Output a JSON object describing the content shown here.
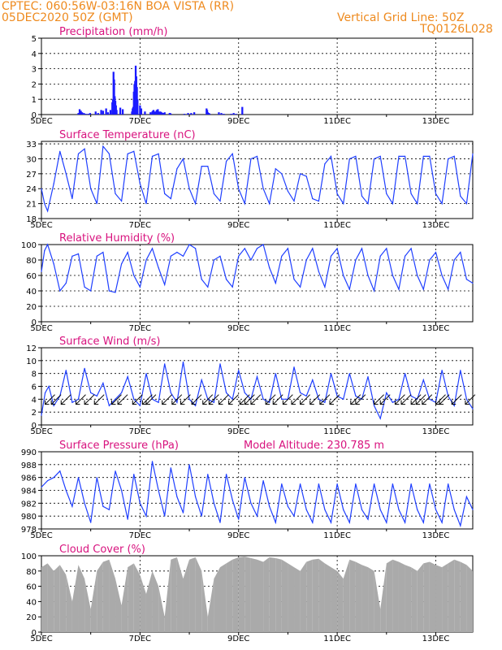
{
  "header": {
    "line1": "CPTEC:   060:56W-03:16N  BOA VISTA (RR)",
    "line2": "05DEC2020 50Z (GMT)",
    "right1": "Vertical Grid Line: 50Z",
    "right2": "TQ0126L028"
  },
  "colors": {
    "header": "#ee8a1e",
    "title": "#d8127e",
    "line": "#1f3fff",
    "bar": "#1a1aff",
    "cloud": "#aaaaaa"
  },
  "chart_data": [
    {
      "id": "precip",
      "type": "bar",
      "title": "Precipitation (mm/h)",
      "x_ticks": [
        "5DEC",
        "7DEC",
        "9DEC",
        "11DEC",
        "13DEC",
        "15DEC",
        "17DEC",
        "19DEC"
      ],
      "y_ticks": [
        "0",
        "1",
        "2",
        "3",
        "4",
        "5"
      ],
      "ylim": [
        0,
        5
      ],
      "grid": true,
      "x": [
        3.0,
        3.1,
        3.2,
        3.3,
        3.45,
        3.6,
        3.8,
        3.95,
        4.4,
        4.6,
        4.85,
        5.0,
        5.25,
        5.4,
        5.6,
        5.75,
        5.8,
        5.85,
        5.9,
        5.95,
        6.0,
        6.05,
        6.1,
        6.4,
        6.6,
        7.35,
        7.4,
        7.45,
        7.5,
        7.55,
        7.6,
        7.65,
        7.7,
        7.75,
        7.8,
        8.0,
        8.1,
        8.4,
        8.85,
        9.0,
        9.05,
        9.1,
        9.15,
        9.2,
        9.25,
        9.3,
        9.35,
        9.4,
        9.45,
        9.5,
        9.55,
        9.6,
        9.65,
        9.7,
        9.75,
        9.8,
        9.85,
        9.9,
        9.95,
        10.0,
        10.4,
        10.45,
        10.5,
        11.6,
        11.9,
        12.15,
        12.4,
        13.4,
        13.45,
        13.5,
        13.55,
        13.6,
        13.65,
        14.4,
        14.6,
        14.8,
        15.4,
        15.6,
        15.8,
        16.3
      ],
      "values": [
        0.1,
        0.35,
        0.25,
        0.15,
        0.1,
        0.05,
        0.05,
        0.1,
        0.2,
        0.1,
        0.3,
        0.25,
        0.4,
        0.15,
        0.3,
        0.8,
        1.0,
        2.8,
        2.3,
        1.2,
        0.9,
        0.6,
        0.3,
        0.45,
        0.35,
        0.2,
        0.4,
        0.5,
        1.5,
        2.0,
        2.2,
        3.2,
        2.5,
        1.8,
        1.0,
        0.6,
        0.4,
        0.2,
        0.15,
        0.2,
        0.25,
        0.3,
        0.2,
        0.15,
        0.1,
        0.2,
        0.3,
        0.25,
        0.35,
        0.2,
        0.1,
        0.15,
        0.2,
        0.1,
        0.15,
        0.1,
        0.05,
        0.1,
        0.1,
        0.15,
        0.1,
        0.1,
        0.05,
        0.05,
        0.1,
        0.1,
        0.15,
        0.4,
        0.3,
        0.15,
        0.1,
        0.1,
        0.05,
        0.15,
        0.1,
        0.05,
        0.05,
        0.1,
        0.05,
        0.5
      ]
    },
    {
      "id": "temp",
      "type": "line",
      "title": "Surface Temperature (nC)",
      "x_ticks": [
        "5DEC",
        "7DEC",
        "9DEC",
        "11DEC",
        "13DEC",
        "15DEC",
        "17DEC",
        "19DEC"
      ],
      "y_ticks": [
        "18",
        "21",
        "24",
        "27",
        "30",
        "33"
      ],
      "ylim": [
        18,
        33.5
      ],
      "grid": true,
      "x": [
        0,
        0.25,
        0.5,
        1.0,
        1.5,
        2.0,
        2.5,
        3.0,
        3.5,
        4.0,
        4.5,
        5.0,
        5.5,
        6.0,
        6.5,
        7.0,
        7.5,
        8.0,
        8.5,
        9.0,
        9.5,
        10.0,
        10.5,
        11.0,
        11.5,
        12.0,
        12.5,
        13.0,
        13.5,
        14.0,
        14.5,
        15.0,
        15.5,
        16.0,
        16.5,
        17.0,
        17.5,
        18.0,
        18.5,
        19.0,
        19.5,
        20.0,
        20.5,
        21.0,
        21.5,
        22.0,
        22.5,
        23.0,
        23.5,
        24.0,
        24.5,
        25.0,
        25.5,
        26.0,
        26.5,
        27.0,
        27.5,
        28.0,
        28.5,
        29.0,
        29.5,
        30.0,
        30.5,
        31.0,
        31.5,
        32.0,
        32.5,
        33.0,
        33.5,
        34.0,
        34.5,
        35.0
      ],
      "values": [
        24,
        21,
        19.5,
        25,
        31.5,
        27,
        22,
        31,
        32,
        24,
        21,
        32.5,
        31,
        23,
        21.5,
        31,
        31.5,
        25,
        21,
        30.5,
        31,
        23,
        22,
        28,
        30,
        24,
        21,
        28.5,
        28.5,
        23,
        21.5,
        29.5,
        31,
        24,
        21,
        30,
        30.5,
        24,
        21,
        28,
        27,
        23.5,
        21.5,
        27,
        26.5,
        22,
        21.5,
        29,
        30.5,
        23,
        21,
        30,
        30.5,
        22.5,
        21,
        30,
        30.5,
        23,
        21,
        30.5,
        30.5,
        23,
        21,
        30.5,
        30.5,
        23,
        21,
        30,
        30.5,
        22.5,
        21,
        31
      ]
    },
    {
      "id": "rh",
      "type": "line",
      "title": "Relative Humidity (%)",
      "x_ticks": [
        "5DEC",
        "7DEC",
        "9DEC",
        "11DEC",
        "13DEC",
        "15DEC",
        "17DEC",
        "19DEC"
      ],
      "y_ticks": [
        "0",
        "20",
        "40",
        "60",
        "80",
        "100"
      ],
      "ylim": [
        0,
        100
      ],
      "grid": true,
      "x": [
        0,
        0.25,
        0.5,
        1.0,
        1.5,
        2.0,
        2.5,
        3.0,
        3.5,
        4.0,
        4.5,
        5.0,
        5.5,
        6.0,
        6.5,
        7.0,
        7.5,
        8.0,
        8.5,
        9.0,
        9.5,
        10.0,
        10.5,
        11.0,
        11.5,
        12.0,
        12.5,
        13.0,
        13.5,
        14.0,
        14.5,
        15.0,
        15.5,
        16.0,
        16.5,
        17.0,
        17.5,
        18.0,
        18.5,
        19.0,
        19.5,
        20.0,
        20.5,
        21.0,
        21.5,
        22.0,
        22.5,
        23.0,
        23.5,
        24.0,
        24.5,
        25.0,
        25.5,
        26.0,
        26.5,
        27.0,
        27.5,
        28.0,
        28.5,
        29.0,
        29.5,
        30.0,
        30.5,
        31.0,
        31.5,
        32.0,
        32.5,
        33.0,
        33.5,
        34.0,
        34.5,
        35.0
      ],
      "values": [
        65,
        92,
        100,
        75,
        40,
        50,
        85,
        88,
        45,
        40,
        85,
        90,
        40,
        38,
        75,
        90,
        60,
        45,
        80,
        95,
        70,
        48,
        85,
        90,
        85,
        100,
        95,
        55,
        45,
        80,
        85,
        55,
        45,
        85,
        95,
        80,
        95,
        100,
        70,
        50,
        85,
        95,
        55,
        45,
        80,
        95,
        65,
        45,
        85,
        95,
        60,
        42,
        80,
        95,
        60,
        40,
        85,
        95,
        60,
        42,
        85,
        95,
        60,
        42,
        80,
        90,
        60,
        42,
        80,
        90,
        55,
        50
      ]
    },
    {
      "id": "wind",
      "type": "line",
      "title": "Surface Wind (m/s)",
      "x_ticks": [
        "5DEC",
        "7DEC",
        "9DEC",
        "11DEC",
        "13DEC",
        "15DEC",
        "17DEC",
        "19DEC"
      ],
      "y_ticks": [
        "0",
        "2",
        "4",
        "6",
        "8",
        "10",
        "12"
      ],
      "ylim": [
        0,
        12
      ],
      "grid": true,
      "x": [
        0,
        0.3,
        0.6,
        1.0,
        1.5,
        2.0,
        2.5,
        3.0,
        3.5,
        4.0,
        4.5,
        5.0,
        5.5,
        6.0,
        6.5,
        7.0,
        7.5,
        8.0,
        8.5,
        9.0,
        9.5,
        10.0,
        10.5,
        11.0,
        11.5,
        12.0,
        12.5,
        13.0,
        13.5,
        14.0,
        14.5,
        15.0,
        15.5,
        16.0,
        16.5,
        17.0,
        17.5,
        18.0,
        18.5,
        19.0,
        19.5,
        20.0,
        20.5,
        21.0,
        21.5,
        22.0,
        22.5,
        23.0,
        23.5,
        24.0,
        24.5,
        25.0,
        25.5,
        26.0,
        26.5,
        27.0,
        27.5,
        28.0,
        28.5,
        29.0,
        29.5,
        30.0,
        30.5,
        31.0,
        31.5,
        32.0,
        32.5,
        33.0,
        33.5,
        34.0,
        34.5,
        35.0
      ],
      "values": [
        1.5,
        5,
        6,
        3,
        4.5,
        8.5,
        3.5,
        4,
        8.8,
        5,
        4.5,
        6.5,
        3,
        4,
        5,
        7.5,
        4,
        3,
        8,
        4,
        3.5,
        9.5,
        5,
        3.5,
        9.8,
        4,
        3,
        7,
        4,
        3.5,
        9.5,
        5,
        4,
        8.5,
        5,
        4,
        7.5,
        4,
        3.5,
        8,
        4,
        4,
        9,
        5,
        4.5,
        7,
        4,
        3.5,
        8,
        4.5,
        4,
        8,
        4.5,
        4,
        7.5,
        3,
        1,
        5,
        3.5,
        4,
        8,
        4.5,
        4,
        7,
        4,
        3.5,
        8.5,
        4.5,
        3,
        8.5,
        4,
        2.5
      ],
      "arrows": [
        0.3,
        0.8,
        1.6,
        2.8,
        3.5,
        4.3,
        5.7,
        6.2,
        7.4,
        8.2,
        8.5,
        9.8,
        10.6,
        11.3,
        12.2,
        13.1,
        13.6,
        14.4,
        15.2,
        16.1,
        16.5,
        17.0,
        18.2,
        18.8,
        19.6,
        20.3,
        21.0,
        21.8,
        22.6,
        23.4,
        25.1,
        25.5,
        27.0,
        27.5,
        28.7,
        29.2,
        30.0,
        30.4,
        30.9,
        32.0,
        32.3,
        33.3,
        34.4
      ]
    },
    {
      "id": "pres",
      "type": "line",
      "title": "Surface Pressure (hPa)",
      "annotation": "Model Altitude: 230.785 m",
      "x_ticks": [
        "5DEC",
        "7DEC",
        "9DEC",
        "11DEC",
        "13DEC",
        "15DEC",
        "17DEC",
        "19DEC"
      ],
      "y_ticks": [
        "978",
        "980",
        "982",
        "984",
        "986",
        "988",
        "990"
      ],
      "ylim": [
        978,
        990
      ],
      "grid": true,
      "x": [
        0,
        0.5,
        1.0,
        1.5,
        2.0,
        2.5,
        3.0,
        3.5,
        4.0,
        4.5,
        5.0,
        5.5,
        6.0,
        6.5,
        7.0,
        7.5,
        8.0,
        8.5,
        9.0,
        9.5,
        10.0,
        10.5,
        11.0,
        11.5,
        12.0,
        12.5,
        13.0,
        13.5,
        14.0,
        14.5,
        15.0,
        15.5,
        16.0,
        16.5,
        17.0,
        17.5,
        18.0,
        18.5,
        19.0,
        19.5,
        20.0,
        20.5,
        21.0,
        21.5,
        22.0,
        22.5,
        23.0,
        23.5,
        24.0,
        24.5,
        25.0,
        25.5,
        26.0,
        26.5,
        27.0,
        27.5,
        28.0,
        28.5,
        29.0,
        29.5,
        30.0,
        30.5,
        31.0,
        31.5,
        32.0,
        32.5,
        33.0,
        33.5,
        34.0,
        34.5,
        35.0
      ],
      "values": [
        984.5,
        985.5,
        986,
        987,
        984,
        981.5,
        986,
        982,
        979,
        986,
        981.5,
        981,
        987,
        984,
        979.5,
        986.5,
        982,
        980,
        988.5,
        984,
        980,
        987.5,
        983,
        980.5,
        988,
        983,
        980,
        986.5,
        982,
        979,
        986.5,
        982.5,
        979.5,
        986,
        982,
        980,
        985.5,
        981.5,
        979,
        985,
        981.5,
        980,
        985,
        981,
        979,
        985,
        981,
        979,
        985,
        981,
        979,
        985,
        981,
        979.5,
        985,
        981,
        979,
        985,
        981,
        979,
        985,
        981,
        979,
        985,
        981,
        979,
        985,
        981,
        978.5,
        983,
        981
      ]
    },
    {
      "id": "cloud",
      "type": "area",
      "title": "Cloud Cover (%)",
      "x_ticks": [
        "5DEC",
        "7DEC",
        "9DEC",
        "11DEC",
        "13DEC",
        "15DEC",
        "17DEC",
        "19DEC"
      ],
      "y_ticks": [
        "0",
        "20",
        "40",
        "60",
        "80",
        "100"
      ],
      "ylim": [
        0,
        100
      ],
      "grid": true,
      "x": [
        0,
        0.5,
        1.0,
        1.5,
        2.0,
        2.5,
        3.0,
        3.5,
        4.0,
        4.5,
        5.0,
        5.5,
        6.0,
        6.5,
        7.0,
        7.5,
        8.0,
        8.5,
        9.0,
        9.5,
        10.0,
        10.5,
        11.0,
        11.5,
        12.0,
        12.5,
        13.0,
        13.5,
        14.0,
        14.5,
        15.0,
        15.5,
        16.0,
        16.5,
        17.0,
        17.5,
        18.0,
        18.5,
        19.0,
        19.5,
        20.0,
        20.5,
        21.0,
        21.5,
        22.0,
        22.5,
        23.0,
        23.5,
        24.0,
        24.5,
        25.0,
        25.5,
        26.0,
        26.5,
        27.0,
        27.5,
        28.0,
        28.5,
        29.0,
        29.5,
        30.0,
        30.5,
        31.0,
        31.5,
        32.0,
        32.5,
        33.0,
        33.5,
        34.0,
        34.5,
        35.0
      ],
      "values": [
        85,
        90,
        80,
        88,
        75,
        40,
        88,
        70,
        30,
        80,
        92,
        95,
        70,
        35,
        85,
        90,
        75,
        50,
        80,
        60,
        20,
        95,
        98,
        70,
        95,
        98,
        80,
        20,
        70,
        85,
        90,
        95,
        98,
        99,
        97,
        95,
        92,
        98,
        97,
        95,
        90,
        85,
        80,
        92,
        95,
        96,
        90,
        85,
        80,
        70,
        95,
        92,
        88,
        85,
        80,
        30,
        90,
        95,
        92,
        88,
        85,
        80,
        90,
        92,
        88,
        85,
        90,
        95,
        92,
        88,
        80
      ]
    }
  ]
}
